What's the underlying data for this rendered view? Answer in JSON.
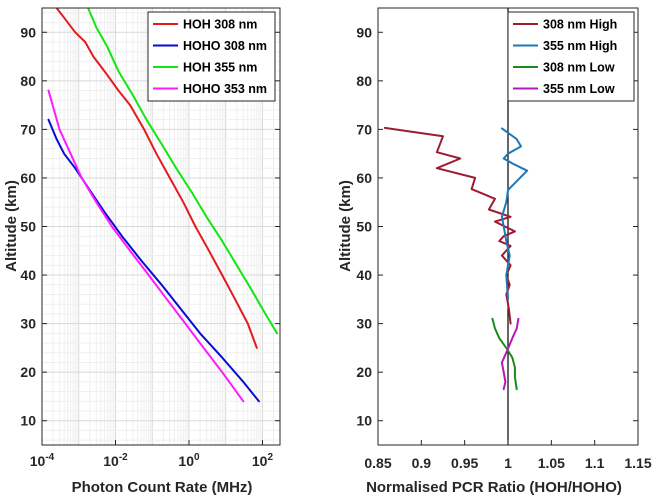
{
  "chart_data": [
    {
      "type": "line",
      "xscale": "log",
      "xlabel": "Photon Count Rate (MHz)",
      "ylabel": "Altitude (km)",
      "xlim": [
        0.0001,
        300
      ],
      "ylim": [
        5,
        95
      ],
      "xticks": [
        0.0001,
        0.01,
        1,
        100
      ],
      "xtick_labels": [
        {
          "base": "10",
          "exp": "-4"
        },
        {
          "base": "10",
          "exp": "-2"
        },
        {
          "base": "10",
          "exp": "0"
        },
        {
          "base": "10",
          "exp": "2"
        }
      ],
      "yticks": [
        10,
        20,
        30,
        40,
        50,
        60,
        70,
        80,
        90
      ],
      "grid": true,
      "legend_position": "top-right",
      "series": [
        {
          "name": "HOH 308 nm",
          "color": "#e41a1c",
          "x": [
            70,
            40,
            18,
            8,
            3.5,
            1.5,
            0.7,
            0.3,
            0.13,
            0.06,
            0.025,
            0.012,
            0.005,
            0.0025,
            0.0015,
            0.0008,
            0.0004,
            0.00025
          ],
          "y": [
            25,
            30,
            35,
            40,
            45,
            50,
            55,
            60,
            65,
            70,
            75,
            78,
            82,
            85,
            88,
            90,
            93,
            95
          ]
        },
        {
          "name": "HOHO 308 nm",
          "color": "#0a0ad6",
          "x": [
            80,
            30,
            8,
            2,
            0.6,
            0.18,
            0.05,
            0.015,
            0.005,
            0.0018,
            0.0008,
            0.0004,
            0.00025,
            0.00015
          ],
          "y": [
            14,
            18,
            23,
            28,
            33,
            38,
            43,
            48,
            53,
            58,
            62,
            65,
            68,
            72
          ]
        },
        {
          "name": "HOH 355 nm",
          "color": "#12e612",
          "x": [
            250,
            120,
            50,
            20,
            8,
            3,
            1.2,
            0.45,
            0.18,
            0.07,
            0.03,
            0.012,
            0.006,
            0.003,
            0.0018
          ],
          "y": [
            28,
            32,
            37,
            42,
            47,
            52,
            57,
            62,
            67,
            72,
            77,
            82,
            87,
            91,
            95
          ]
        },
        {
          "name": "HOHO 353 nm",
          "color": "#ff1aff",
          "x": [
            30,
            8,
            2.5,
            0.8,
            0.25,
            0.08,
            0.025,
            0.008,
            0.003,
            0.0012,
            0.0006,
            0.0003,
            0.00015
          ],
          "y": [
            14,
            20,
            25,
            30,
            35,
            40,
            45,
            50,
            55,
            60,
            65,
            70,
            78
          ]
        }
      ]
    },
    {
      "type": "line",
      "xlabel": "Normalised PCR Ratio (HOH/HOHO)",
      "ylabel": "Altitude (km)",
      "xlim": [
        0.85,
        1.15
      ],
      "ylim": [
        5,
        95
      ],
      "xticks": [
        0.85,
        0.9,
        0.95,
        1,
        1.05,
        1.1,
        1.15
      ],
      "xtick_labels": [
        "0.85",
        "0.9",
        "0.95",
        "1",
        "1.05",
        "1.1",
        "1.15"
      ],
      "yticks": [
        10,
        20,
        30,
        40,
        50,
        60,
        70,
        80,
        90
      ],
      "grid": false,
      "reference_line_x": 1,
      "legend_position": "top-right",
      "series": [
        {
          "name": "308 nm High",
          "color": "#9e1b32",
          "x": [
            0.858,
            0.925,
            0.918,
            0.945,
            0.918,
            0.962,
            0.958,
            0.985,
            0.978,
            1.003,
            0.985,
            1.008,
            0.995,
            0.99,
            1.003,
            0.993,
            1.003,
            0.998,
            1.002,
            0.998,
            1.001,
            1.003
          ],
          "y": [
            70.3,
            68.6,
            65.3,
            64.0,
            62.0,
            60.0,
            57.7,
            55.7,
            53.5,
            52.0,
            51.0,
            49.0,
            48.0,
            47.0,
            46.0,
            44.0,
            42.0,
            40.0,
            38.0,
            36.0,
            33.0,
            30.0
          ]
        },
        {
          "name": "355 nm High",
          "color": "#1f77b4",
          "x": [
            0.993,
            1.01,
            1.015,
            1.0,
            0.995,
            1.005,
            1.022,
            1.0,
            0.998,
            0.993,
            0.995,
            0.998,
            1.002,
            0.998,
            1.0
          ],
          "y": [
            70.2,
            68.0,
            66.5,
            65.0,
            64.0,
            63.0,
            61.5,
            57.5,
            55.0,
            52.0,
            50.0,
            47.0,
            44.0,
            40.0,
            35.0
          ]
        },
        {
          "name": "308 nm Low",
          "color": "#1a8a1a",
          "x": [
            0.982,
            0.985,
            0.99,
            0.998,
            1.005,
            1.008,
            1.008,
            1.01
          ],
          "y": [
            31.0,
            29.0,
            27.0,
            25.0,
            23.0,
            21.0,
            19.0,
            16.5
          ]
        },
        {
          "name": "355 nm Low",
          "color": "#b519b5",
          "x": [
            1.012,
            1.01,
            1.005,
            0.998,
            0.993,
            0.995,
            0.997,
            0.995
          ],
          "y": [
            31.0,
            29.0,
            27.0,
            24.0,
            22.0,
            20.0,
            18.0,
            16.5
          ]
        }
      ]
    }
  ]
}
